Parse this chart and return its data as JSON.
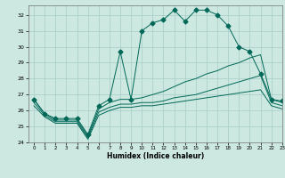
{
  "title": "",
  "xlabel": "Humidex (Indice chaleur)",
  "ylabel": "",
  "bg_color": "#cce8e0",
  "grid_color": "#a8ccc8",
  "line_color": "#006858",
  "xlim": [
    -0.5,
    23
  ],
  "ylim": [
    24,
    32.6
  ],
  "yticks": [
    24,
    25,
    26,
    27,
    28,
    29,
    30,
    31,
    32
  ],
  "xticks": [
    0,
    1,
    2,
    3,
    4,
    5,
    6,
    7,
    8,
    9,
    10,
    11,
    12,
    13,
    14,
    15,
    16,
    17,
    18,
    19,
    20,
    21,
    22,
    23
  ],
  "series": [
    {
      "x": [
        0,
        1,
        2,
        3,
        4,
        5,
        6,
        7,
        8,
        9,
        10,
        11,
        12,
        13,
        14,
        15,
        16,
        17,
        18,
        19,
        20,
        21,
        22,
        23
      ],
      "y": [
        26.7,
        25.8,
        25.5,
        25.5,
        25.5,
        24.5,
        26.3,
        26.7,
        29.7,
        26.7,
        31.0,
        31.5,
        31.7,
        32.3,
        31.6,
        32.3,
        32.3,
        32.0,
        31.3,
        30.0,
        29.7,
        28.3,
        26.7,
        26.6
      ],
      "marker": "D",
      "markersize": 2.5,
      "linestyle": "-"
    },
    {
      "x": [
        0,
        1,
        2,
        3,
        4,
        5,
        6,
        7,
        8,
        9,
        10,
        11,
        12,
        13,
        14,
        15,
        16,
        17,
        18,
        19,
        20,
        21,
        22,
        23
      ],
      "y": [
        26.7,
        25.8,
        25.4,
        25.4,
        25.4,
        24.4,
        26.1,
        26.5,
        26.7,
        26.7,
        26.8,
        27.0,
        27.2,
        27.5,
        27.8,
        28.0,
        28.3,
        28.5,
        28.8,
        29.0,
        29.3,
        29.5,
        26.7,
        26.5
      ],
      "marker": null,
      "linestyle": "-"
    },
    {
      "x": [
        0,
        1,
        2,
        3,
        4,
        5,
        6,
        7,
        8,
        9,
        10,
        11,
        12,
        13,
        14,
        15,
        16,
        17,
        18,
        19,
        20,
        21,
        22,
        23
      ],
      "y": [
        26.5,
        25.7,
        25.3,
        25.3,
        25.3,
        24.3,
        25.9,
        26.2,
        26.4,
        26.4,
        26.5,
        26.5,
        26.6,
        26.8,
        26.9,
        27.0,
        27.2,
        27.4,
        27.6,
        27.8,
        28.0,
        28.2,
        26.5,
        26.3
      ],
      "marker": null,
      "linestyle": "-"
    },
    {
      "x": [
        0,
        1,
        2,
        3,
        4,
        5,
        6,
        7,
        8,
        9,
        10,
        11,
        12,
        13,
        14,
        15,
        16,
        17,
        18,
        19,
        20,
        21,
        22,
        23
      ],
      "y": [
        26.3,
        25.6,
        25.2,
        25.2,
        25.2,
        24.2,
        25.7,
        26.0,
        26.2,
        26.2,
        26.3,
        26.3,
        26.4,
        26.5,
        26.6,
        26.7,
        26.8,
        26.9,
        27.0,
        27.1,
        27.2,
        27.3,
        26.3,
        26.1
      ],
      "marker": null,
      "linestyle": "-"
    }
  ]
}
